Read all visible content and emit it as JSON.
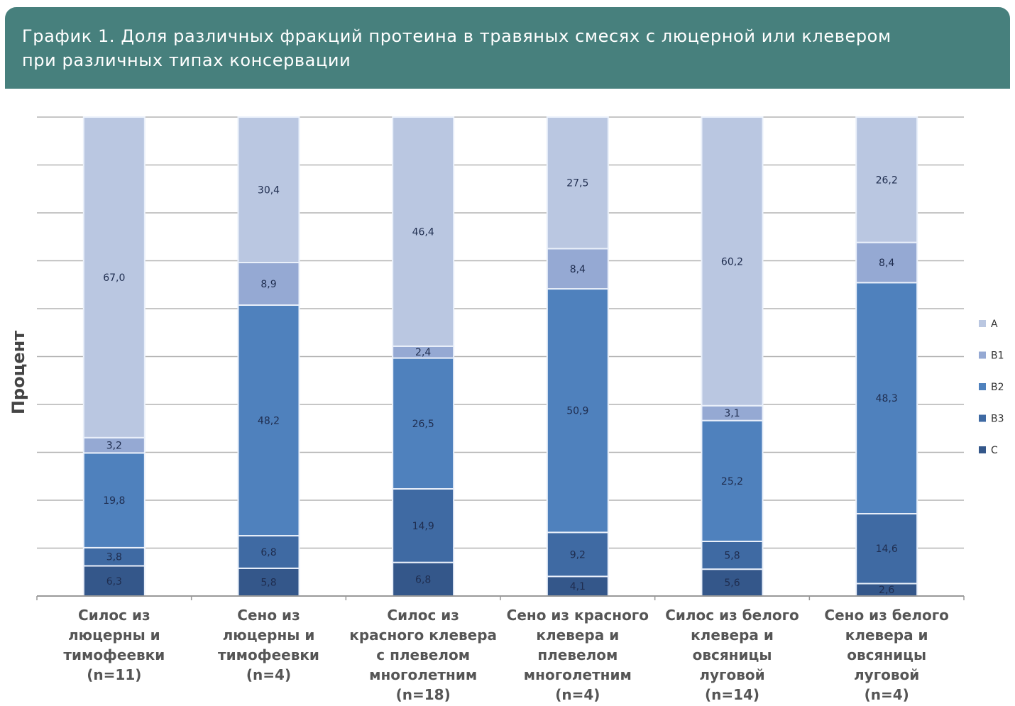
{
  "header": {
    "title_line1": "График 1. Доля различных фракций протеина в травяных смесях с люцерной или клевером",
    "title_line2": "при различных типах консервации"
  },
  "chart_data": {
    "type": "bar",
    "stacked": true,
    "title": "График 1. Доля различных фракций протеина в травяных смесях с люцерной или клевером при различных типах консервации",
    "xlabel": "",
    "ylabel": "Процент",
    "ylim": [
      0,
      100
    ],
    "grid": true,
    "legend_position": "right",
    "categories": [
      [
        "Силос из",
        "люцерны и",
        "тимофеевки",
        "(n=11)"
      ],
      [
        "Сено из",
        "люцерны и",
        "тимофеевки",
        "(n=4)"
      ],
      [
        "Силос из",
        "красного клевера",
        "с плевелом",
        "многолетним",
        "(n=18)"
      ],
      [
        "Сено из красного",
        "клевера и",
        "плевелом",
        "многолетним",
        "(n=4)"
      ],
      [
        "Силос из белого",
        "клевера и",
        "овсяницы",
        "луговой",
        "(n=14)"
      ],
      [
        "Сено из белого",
        "клевера и",
        "овсяницы",
        "луговой",
        "(n=4)"
      ]
    ],
    "series": [
      {
        "name": "C",
        "color": "#34578a",
        "values": [
          6.3,
          5.8,
          6.8,
          4.1,
          5.6,
          2.6
        ],
        "labels": [
          "6,3",
          "5,8",
          "6,8",
          "4,1",
          "5,6",
          "2,6"
        ]
      },
      {
        "name": "B3",
        "color": "#3f6aa3",
        "values": [
          3.8,
          6.8,
          14.9,
          9.2,
          5.8,
          14.6
        ],
        "labels": [
          "3,8",
          "6,8",
          "14,9",
          "9,2",
          "5,8",
          "14,6"
        ]
      },
      {
        "name": "B2",
        "color": "#4f81bd",
        "values": [
          19.8,
          48.2,
          26.5,
          50.9,
          25.2,
          48.3
        ],
        "labels": [
          "19,8",
          "48,2",
          "26,5",
          "50,9",
          "25,2",
          "48,3"
        ]
      },
      {
        "name": "B1",
        "color": "#95a9d3",
        "values": [
          3.2,
          8.9,
          2.4,
          8.4,
          3.1,
          8.4
        ],
        "labels": [
          "3,2",
          "8,9",
          "2,4",
          "8,4",
          "3,1",
          "8,4"
        ]
      },
      {
        "name": "A",
        "color": "#bac7e1",
        "values": [
          67.0,
          30.4,
          46.4,
          27.5,
          60.2,
          26.2
        ],
        "labels": [
          "67,0",
          "30,4",
          "46,4",
          "27,5",
          "60,2",
          "26,2"
        ]
      }
    ],
    "legend_order": [
      "A",
      "B1",
      "B2",
      "B3",
      "C"
    ]
  }
}
